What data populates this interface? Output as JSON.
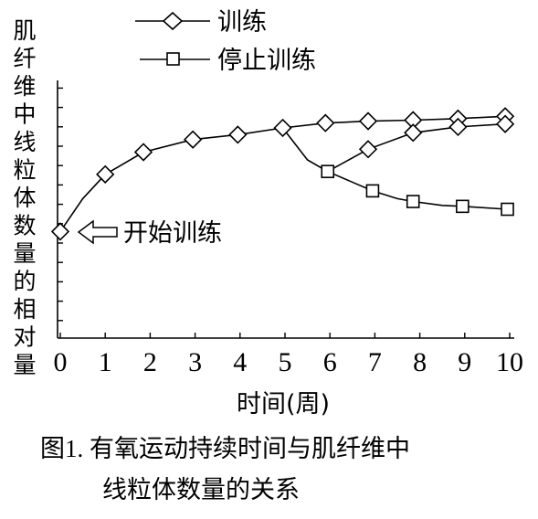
{
  "chart_data": {
    "type": "line",
    "title": "",
    "caption": [
      "图1. 有氧运动持续时间与肌纤维中",
      "线粒体数量的关系"
    ],
    "xlabel": "时间(周)",
    "ylabel": "肌纤维中线粒体数量的相对量",
    "x_ticks": [
      "0",
      "1",
      "2",
      "3",
      "4",
      "5",
      "6",
      "7",
      "8",
      "9",
      "10"
    ],
    "xlim": [
      0,
      10
    ],
    "ylim": [
      0,
      13
    ],
    "grid": false,
    "legend_position": "top-left",
    "annotation": "开始训练",
    "series": [
      {
        "name": "训练",
        "marker": "diamond",
        "x": [
          0,
          1,
          1.85,
          2.95,
          3.95,
          4.95,
          5.9,
          6.85,
          7.85,
          8.85,
          9.9
        ],
        "y": [
          5.5,
          8.45,
          9.6,
          10.25,
          10.5,
          10.85,
          11.1,
          11.2,
          11.25,
          11.33,
          11.45
        ],
        "line_points": [
          [
            0,
            5.5
          ],
          [
            0.5,
            7.2
          ],
          [
            1,
            8.45
          ],
          [
            1.85,
            9.6
          ],
          [
            2.95,
            10.25
          ],
          [
            3.95,
            10.5
          ],
          [
            4.95,
            10.85
          ],
          [
            5.9,
            11.1
          ],
          [
            6.85,
            11.2
          ],
          [
            7.85,
            11.25
          ],
          [
            8.85,
            11.33
          ],
          [
            9.9,
            11.45
          ]
        ],
        "marker_show": [
          true,
          false,
          true,
          true,
          true,
          true,
          true,
          true,
          true,
          true,
          true,
          true
        ]
      },
      {
        "name": "停止训练",
        "marker": "square",
        "x": [
          5.95,
          6.95,
          7.85,
          8.95,
          9.95
        ],
        "y": [
          8.6,
          7.6,
          7.05,
          6.8,
          6.65
        ],
        "line_points": [
          [
            5.95,
            8.6
          ],
          [
            6.95,
            7.6
          ],
          [
            7.5,
            7.2
          ],
          [
            7.85,
            7.05
          ],
          [
            8.5,
            6.85
          ],
          [
            8.95,
            6.8
          ],
          [
            9.95,
            6.65
          ]
        ],
        "marker_show": [
          true,
          true,
          false,
          true,
          false,
          true,
          true
        ]
      },
      {
        "name": "",
        "marker": "diamond",
        "x": [
          6.85,
          7.85,
          8.85,
          9.9
        ],
        "y": [
          9.75,
          10.6,
          10.9,
          11.05
        ],
        "line_points": [
          [
            4.95,
            10.85
          ],
          [
            5.5,
            9.2
          ],
          [
            5.95,
            8.6
          ],
          [
            6.85,
            9.75
          ],
          [
            7.85,
            10.6
          ],
          [
            8.85,
            10.9
          ],
          [
            9.9,
            11.05
          ]
        ],
        "marker_show": [
          false,
          false,
          false,
          true,
          true,
          true,
          true
        ]
      }
    ]
  }
}
